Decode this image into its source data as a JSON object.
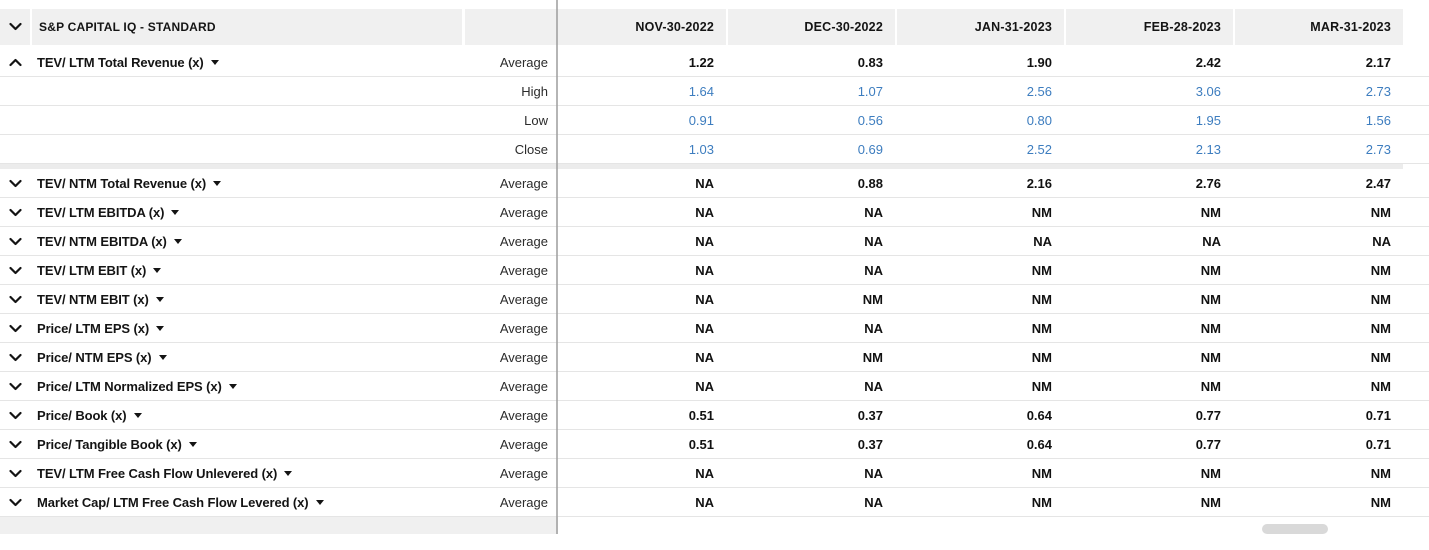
{
  "header": {
    "source_label": "S&P CAPITAL IQ - STANDARD",
    "columns": [
      "NOV-30-2022",
      "DEC-30-2022",
      "JAN-31-2023",
      "FEB-28-2023",
      "MAR-31-2023"
    ]
  },
  "icons": {
    "header_collapse": "chevron-down",
    "group_expanded": "chevron-up",
    "group_collapsed": "chevron-down",
    "metric_menu": "triangle-down"
  },
  "colors": {
    "link_blue": "#3d7dbf",
    "header_bg": "#f0f0f0",
    "separator": "#9c9c9c",
    "scrollbar_thumb": "#d9d9d9"
  },
  "rows": [
    {
      "label": "TEV/ LTM Total Revenue (x)",
      "expanded": true,
      "stats": [
        {
          "stat": "Average",
          "style": "bold",
          "values": [
            "1.22",
            "0.83",
            "1.90",
            "2.42",
            "2.17"
          ]
        },
        {
          "stat": "High",
          "style": "link",
          "values": [
            "1.64",
            "1.07",
            "2.56",
            "3.06",
            "2.73"
          ]
        },
        {
          "stat": "Low",
          "style": "link",
          "values": [
            "0.91",
            "0.56",
            "0.80",
            "1.95",
            "1.56"
          ]
        },
        {
          "stat": "Close",
          "style": "link",
          "values": [
            "1.03",
            "0.69",
            "2.52",
            "2.13",
            "2.73"
          ]
        }
      ]
    },
    {
      "label": "TEV/ NTM Total Revenue (x)",
      "expanded": false,
      "stats": [
        {
          "stat": "Average",
          "style": "bold",
          "values": [
            "NA",
            "0.88",
            "2.16",
            "2.76",
            "2.47"
          ]
        }
      ]
    },
    {
      "label": "TEV/ LTM EBITDA (x)",
      "expanded": false,
      "stats": [
        {
          "stat": "Average",
          "style": "bold",
          "values": [
            "NA",
            "NA",
            "NM",
            "NM",
            "NM"
          ]
        }
      ]
    },
    {
      "label": "TEV/ NTM EBITDA (x)",
      "expanded": false,
      "stats": [
        {
          "stat": "Average",
          "style": "bold",
          "values": [
            "NA",
            "NA",
            "NA",
            "NA",
            "NA"
          ]
        }
      ]
    },
    {
      "label": "TEV/ LTM EBIT (x)",
      "expanded": false,
      "stats": [
        {
          "stat": "Average",
          "style": "bold",
          "values": [
            "NA",
            "NA",
            "NM",
            "NM",
            "NM"
          ]
        }
      ]
    },
    {
      "label": "TEV/ NTM EBIT (x)",
      "expanded": false,
      "stats": [
        {
          "stat": "Average",
          "style": "bold",
          "values": [
            "NA",
            "NM",
            "NM",
            "NM",
            "NM"
          ]
        }
      ]
    },
    {
      "label": "Price/ LTM EPS (x)",
      "expanded": false,
      "stats": [
        {
          "stat": "Average",
          "style": "bold",
          "values": [
            "NA",
            "NA",
            "NM",
            "NM",
            "NM"
          ]
        }
      ]
    },
    {
      "label": "Price/ NTM EPS (x)",
      "expanded": false,
      "stats": [
        {
          "stat": "Average",
          "style": "bold",
          "values": [
            "NA",
            "NM",
            "NM",
            "NM",
            "NM"
          ]
        }
      ]
    },
    {
      "label": "Price/ LTM Normalized EPS (x)",
      "expanded": false,
      "stats": [
        {
          "stat": "Average",
          "style": "bold",
          "values": [
            "NA",
            "NA",
            "NM",
            "NM",
            "NM"
          ]
        }
      ]
    },
    {
      "label": "Price/ Book (x)",
      "expanded": false,
      "stats": [
        {
          "stat": "Average",
          "style": "bold",
          "values": [
            "0.51",
            "0.37",
            "0.64",
            "0.77",
            "0.71"
          ]
        }
      ]
    },
    {
      "label": "Price/ Tangible Book (x)",
      "expanded": false,
      "stats": [
        {
          "stat": "Average",
          "style": "bold",
          "values": [
            "0.51",
            "0.37",
            "0.64",
            "0.77",
            "0.71"
          ]
        }
      ]
    },
    {
      "label": "TEV/ LTM Free Cash Flow Unlevered (x)",
      "expanded": false,
      "stats": [
        {
          "stat": "Average",
          "style": "bold",
          "values": [
            "NA",
            "NA",
            "NM",
            "NM",
            "NM"
          ]
        }
      ]
    },
    {
      "label": "Market Cap/ LTM Free Cash Flow Levered (x)",
      "expanded": false,
      "stats": [
        {
          "stat": "Average",
          "style": "bold",
          "values": [
            "NA",
            "NA",
            "NM",
            "NM",
            "NM"
          ]
        }
      ]
    }
  ]
}
